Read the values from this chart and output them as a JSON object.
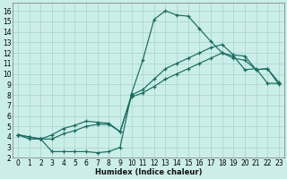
{
  "xlabel": "Humidex (Indice chaleur)",
  "bg_color": "#cceee8",
  "grid_color": "#aad8d2",
  "line_color": "#1a6b60",
  "xlim": [
    -0.5,
    23.5
  ],
  "ylim": [
    2,
    16.8
  ],
  "yticks": [
    2,
    3,
    4,
    5,
    6,
    7,
    8,
    9,
    10,
    11,
    12,
    13,
    14,
    15,
    16
  ],
  "xticks": [
    0,
    1,
    2,
    3,
    4,
    5,
    6,
    7,
    8,
    9,
    10,
    11,
    12,
    13,
    14,
    15,
    16,
    17,
    18,
    19,
    20,
    21,
    22,
    23
  ],
  "line1_x": [
    0,
    1,
    2,
    3,
    4,
    5,
    6,
    7,
    8,
    9,
    10,
    11,
    12,
    13,
    14,
    15,
    16,
    17,
    18,
    19,
    20,
    21,
    22,
    23
  ],
  "line1_y": [
    4.2,
    3.8,
    3.8,
    2.6,
    2.6,
    2.6,
    2.6,
    2.5,
    2.6,
    3.0,
    8.1,
    11.3,
    15.2,
    16.0,
    15.6,
    15.5,
    14.3,
    13.1,
    12.0,
    11.7,
    10.4,
    10.5,
    9.1,
    9.1
  ],
  "line2_x": [
    0,
    1,
    2,
    3,
    4,
    5,
    6,
    7,
    8,
    9,
    10,
    11,
    12,
    13,
    14,
    15,
    16,
    17,
    18,
    19,
    20,
    21,
    22,
    23
  ],
  "line2_y": [
    4.2,
    4.0,
    3.8,
    4.2,
    4.8,
    5.1,
    5.5,
    5.4,
    5.3,
    4.5,
    8.0,
    8.5,
    9.5,
    10.5,
    11.0,
    11.5,
    12.0,
    12.5,
    12.8,
    11.8,
    11.7,
    10.4,
    10.5,
    9.2
  ],
  "line3_x": [
    0,
    1,
    2,
    3,
    4,
    5,
    6,
    7,
    8,
    9,
    10,
    11,
    12,
    13,
    14,
    15,
    16,
    17,
    18,
    19,
    20,
    21,
    22,
    23
  ],
  "line3_y": [
    4.2,
    4.0,
    3.8,
    3.8,
    4.3,
    4.6,
    5.0,
    5.2,
    5.2,
    4.5,
    7.8,
    8.2,
    8.8,
    9.5,
    10.0,
    10.5,
    11.0,
    11.5,
    12.0,
    11.5,
    11.3,
    10.4,
    10.5,
    9.0
  ]
}
